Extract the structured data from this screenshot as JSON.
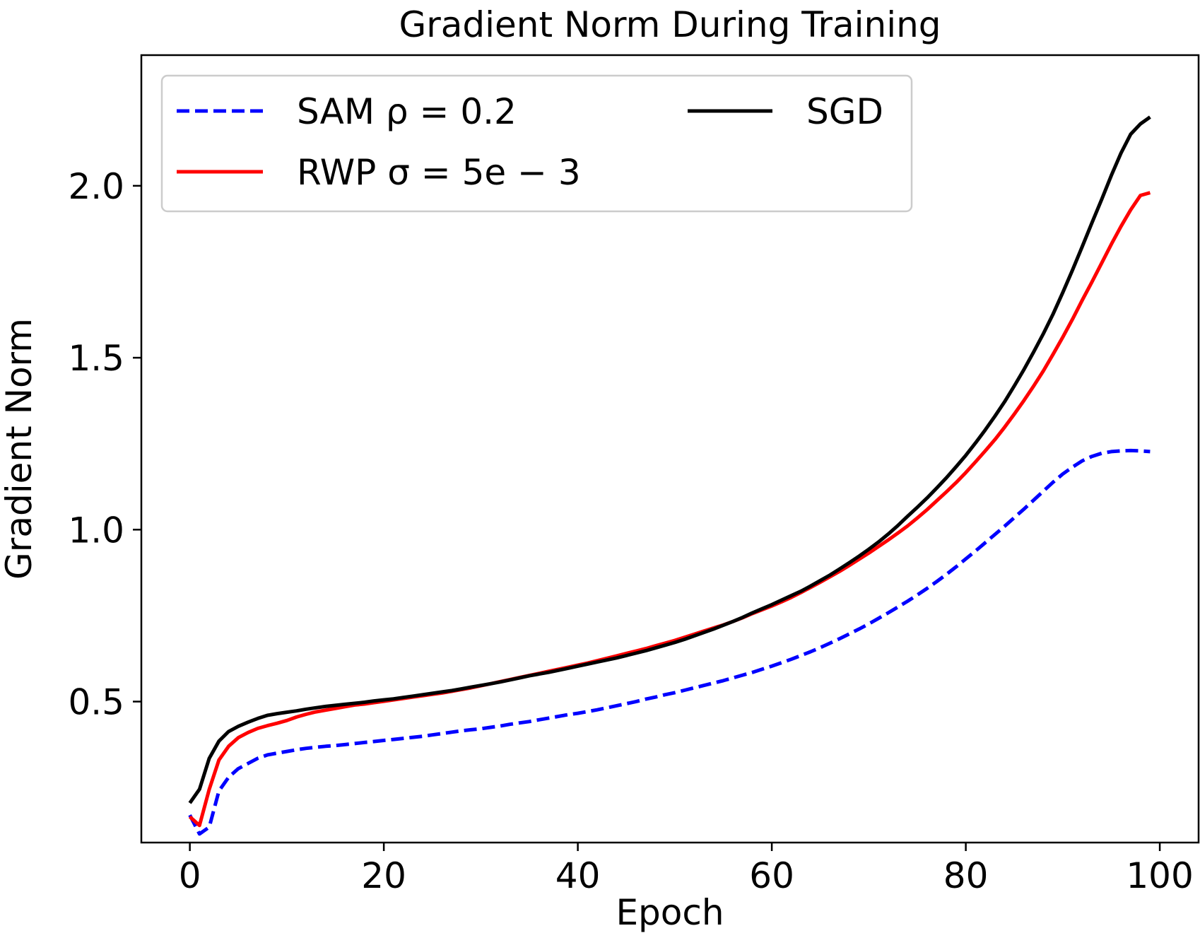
{
  "chart_data": {
    "type": "line",
    "title": "Gradient Norm During Training",
    "xlabel": "Epoch",
    "ylabel": "Gradient Norm",
    "xlim": [
      -5,
      104
    ],
    "ylim": [
      0.09,
      2.38
    ],
    "xticks": [
      0,
      20,
      40,
      60,
      80,
      100
    ],
    "yticks": [
      0.5,
      1.0,
      1.5,
      2.0
    ],
    "xtick_labels": [
      "0",
      "20",
      "40",
      "60",
      "80",
      "100"
    ],
    "ytick_labels": [
      "0.5",
      "1.0",
      "1.5",
      "2.0"
    ],
    "grid": false,
    "legend_position": "upper-left",
    "x": [
      0,
      1,
      2,
      3,
      4,
      5,
      6,
      7,
      8,
      9,
      10,
      11,
      12,
      13,
      14,
      15,
      16,
      17,
      18,
      19,
      20,
      21,
      22,
      23,
      24,
      25,
      26,
      27,
      28,
      29,
      30,
      31,
      32,
      33,
      34,
      35,
      36,
      37,
      38,
      39,
      40,
      41,
      42,
      43,
      44,
      45,
      46,
      47,
      48,
      49,
      50,
      51,
      52,
      53,
      54,
      55,
      56,
      57,
      58,
      59,
      60,
      61,
      62,
      63,
      64,
      65,
      66,
      67,
      68,
      69,
      70,
      71,
      72,
      73,
      74,
      75,
      76,
      77,
      78,
      79,
      80,
      81,
      82,
      83,
      84,
      85,
      86,
      87,
      88,
      89,
      90,
      91,
      92,
      93,
      94,
      95,
      96,
      97,
      98,
      99
    ],
    "series": [
      {
        "name": "SAM ρ = 0.2",
        "legend_label": "SAM ρ = 0.2",
        "color": "#0000ff",
        "style": "dashed",
        "values": [
          0.17,
          0.115,
          0.135,
          0.24,
          0.28,
          0.305,
          0.32,
          0.335,
          0.345,
          0.35,
          0.355,
          0.36,
          0.364,
          0.367,
          0.37,
          0.372,
          0.375,
          0.378,
          0.381,
          0.384,
          0.387,
          0.39,
          0.393,
          0.396,
          0.399,
          0.403,
          0.407,
          0.411,
          0.415,
          0.418,
          0.421,
          0.425,
          0.429,
          0.434,
          0.438,
          0.442,
          0.447,
          0.452,
          0.457,
          0.462,
          0.466,
          0.471,
          0.476,
          0.482,
          0.488,
          0.494,
          0.5,
          0.507,
          0.513,
          0.52,
          0.526,
          0.533,
          0.54,
          0.547,
          0.554,
          0.561,
          0.569,
          0.577,
          0.585,
          0.594,
          0.603,
          0.613,
          0.623,
          0.634,
          0.645,
          0.657,
          0.67,
          0.683,
          0.697,
          0.711,
          0.726,
          0.742,
          0.758,
          0.775,
          0.792,
          0.81,
          0.829,
          0.849,
          0.87,
          0.892,
          0.915,
          0.938,
          0.962,
          0.986,
          1.01,
          1.035,
          1.06,
          1.086,
          1.112,
          1.138,
          1.162,
          1.182,
          1.2,
          1.213,
          1.222,
          1.227,
          1.229,
          1.23,
          1.229,
          1.227
        ]
      },
      {
        "name": "RWP σ = 5e − 3",
        "legend_label": "RWP σ = 5e − 3",
        "color": "#ff0000",
        "style": "solid",
        "values": [
          0.165,
          0.14,
          0.245,
          0.33,
          0.37,
          0.395,
          0.41,
          0.422,
          0.43,
          0.437,
          0.445,
          0.455,
          0.463,
          0.47,
          0.475,
          0.48,
          0.485,
          0.49,
          0.493,
          0.497,
          0.501,
          0.505,
          0.509,
          0.513,
          0.517,
          0.521,
          0.525,
          0.53,
          0.535,
          0.54,
          0.546,
          0.552,
          0.558,
          0.564,
          0.57,
          0.576,
          0.582,
          0.588,
          0.594,
          0.6,
          0.606,
          0.612,
          0.619,
          0.626,
          0.633,
          0.64,
          0.647,
          0.654,
          0.662,
          0.67,
          0.678,
          0.687,
          0.696,
          0.705,
          0.714,
          0.723,
          0.733,
          0.744,
          0.756,
          0.767,
          0.778,
          0.79,
          0.803,
          0.817,
          0.832,
          0.847,
          0.863,
          0.879,
          0.896,
          0.914,
          0.932,
          0.951,
          0.97,
          0.99,
          1.011,
          1.034,
          1.058,
          1.084,
          1.11,
          1.137,
          1.166,
          1.197,
          1.229,
          1.262,
          1.298,
          1.336,
          1.376,
          1.418,
          1.462,
          1.51,
          1.56,
          1.612,
          1.667,
          1.72,
          1.775,
          1.83,
          1.882,
          1.93,
          1.972,
          1.98
        ]
      },
      {
        "name": "SGD",
        "legend_label": "SGD",
        "color": "#000000",
        "style": "solid",
        "values": [
          0.205,
          0.245,
          0.335,
          0.385,
          0.413,
          0.428,
          0.44,
          0.451,
          0.46,
          0.465,
          0.469,
          0.473,
          0.478,
          0.482,
          0.486,
          0.489,
          0.492,
          0.495,
          0.498,
          0.502,
          0.505,
          0.508,
          0.512,
          0.516,
          0.52,
          0.524,
          0.528,
          0.532,
          0.537,
          0.542,
          0.547,
          0.552,
          0.557,
          0.563,
          0.569,
          0.575,
          0.58,
          0.585,
          0.591,
          0.597,
          0.603,
          0.609,
          0.615,
          0.621,
          0.627,
          0.634,
          0.641,
          0.648,
          0.656,
          0.664,
          0.672,
          0.681,
          0.691,
          0.701,
          0.711,
          0.722,
          0.733,
          0.745,
          0.758,
          0.77,
          0.782,
          0.795,
          0.808,
          0.821,
          0.836,
          0.852,
          0.868,
          0.886,
          0.904,
          0.923,
          0.943,
          0.964,
          0.987,
          1.012,
          1.039,
          1.065,
          1.092,
          1.121,
          1.151,
          1.183,
          1.216,
          1.252,
          1.29,
          1.33,
          1.372,
          1.418,
          1.466,
          1.517,
          1.57,
          1.627,
          1.69,
          1.755,
          1.823,
          1.892,
          1.96,
          2.03,
          2.095,
          2.15,
          2.18,
          2.2
        ]
      }
    ]
  }
}
